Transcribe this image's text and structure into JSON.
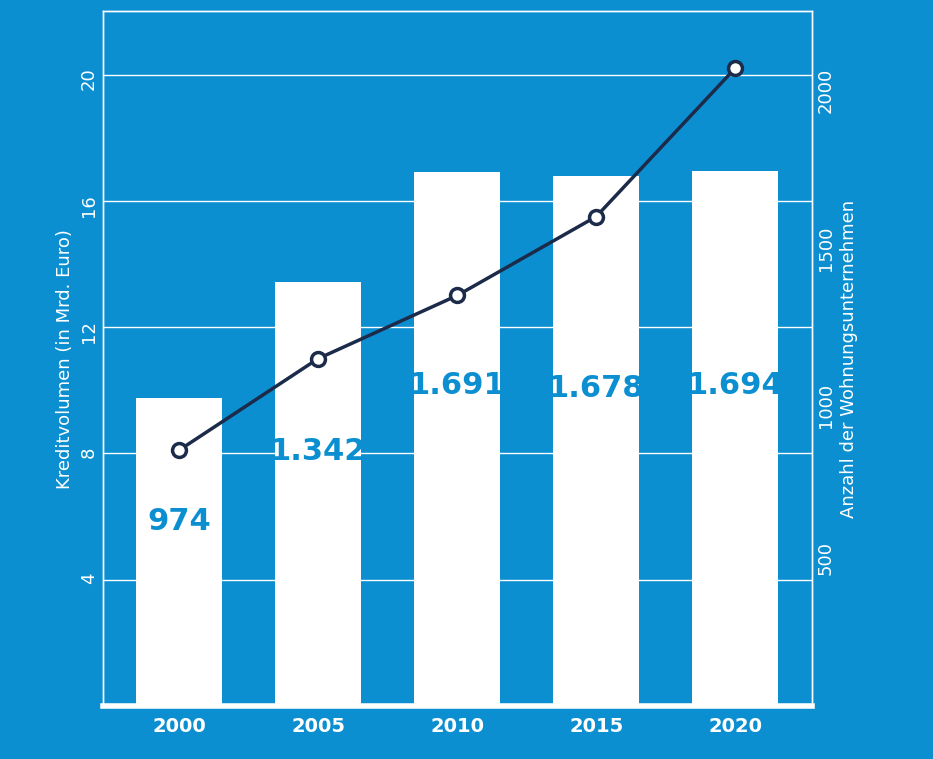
{
  "chart_data": {
    "type": "bar",
    "categories": [
      "2000",
      "2005",
      "2010",
      "2015",
      "2020"
    ],
    "y_label": "Kreditvolumen (in Mrd. Euro)",
    "y2_label": "Anzahl der Wohnungsunternehmen",
    "ylim": [
      0,
      22
    ],
    "yticks": [
      4,
      8,
      12,
      16,
      20
    ],
    "y2lim": [
      0,
      2200
    ],
    "y2ticks": [
      500,
      1000,
      1500,
      2000
    ],
    "grid": true,
    "series": [
      {
        "type": "bar",
        "axis": "y2",
        "color": "#ffffff",
        "values": [
          974,
          1342,
          1691,
          1678,
          1694
        ],
        "value_labels": [
          "974",
          "1.342",
          "1.691",
          "1.678",
          "1.694"
        ],
        "data_labels": true
      },
      {
        "type": "line",
        "axis": "y",
        "color": "#1c2b4a",
        "marker": "o",
        "line_style": "solid",
        "values": [
          8.1,
          11.0,
          13.0,
          15.5,
          20.2
        ]
      }
    ]
  }
}
